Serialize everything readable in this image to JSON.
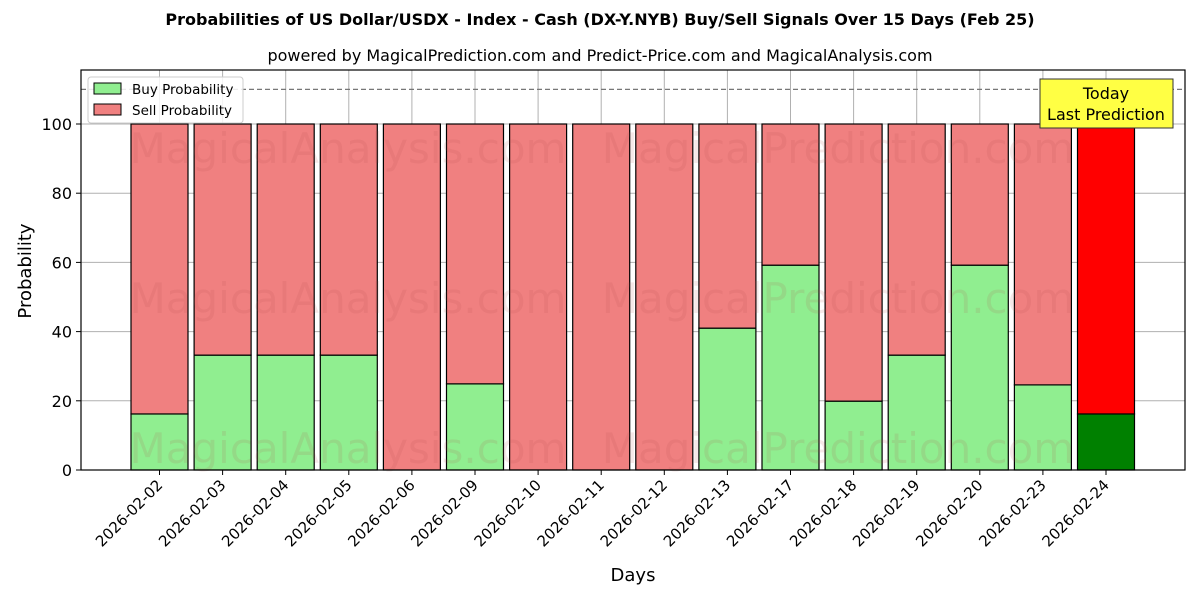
{
  "title": "Probabilities of US Dollar/USDX - Index - Cash (DX-Y.NYB) Buy/Sell Signals Over 15 Days (Feb 25)",
  "subtitle": "powered by MagicalPrediction.com and Predict-Price.com and MagicalAnalysis.com",
  "watermarks": [
    "MagicalAnalysis.com",
    "MagicalPrediction.com"
  ],
  "annotation": {
    "line1": "Today",
    "line2": "Last Prediction"
  },
  "colors": {
    "buy": "#90ee90",
    "sell": "#f08080",
    "buy_last": "#008000",
    "sell_last": "#ff0000",
    "annotation_bg": "#ffff44"
  },
  "chart_data": {
    "type": "bar",
    "stacked": true,
    "title": "Probabilities of US Dollar/USDX - Index - Cash (DX-Y.NYB) Buy/Sell Signals Over 15 Days (Feb 25)",
    "subtitle": "powered by MagicalPrediction.com and Predict-Price.com and MagicalAnalysis.com",
    "xlabel": "Days",
    "ylabel": "Probability",
    "ylim": [
      0,
      115
    ],
    "yticks": [
      0,
      20,
      40,
      60,
      80,
      100
    ],
    "grid": true,
    "legend_position": "upper left",
    "reference_line": 110,
    "categories": [
      "2026-02-02",
      "2026-02-03",
      "2026-02-04",
      "2026-02-05",
      "2026-02-06",
      "2026-02-09",
      "2026-02-10",
      "2026-02-11",
      "2026-02-12",
      "2026-02-13",
      "2026-02-17",
      "2026-02-18",
      "2026-02-19",
      "2026-02-20",
      "2026-02-23",
      "2026-02-24"
    ],
    "series": [
      {
        "name": "Buy Probability",
        "values": [
          16.2,
          33.2,
          33.2,
          33.2,
          0,
          24.9,
          0,
          0,
          0,
          41.0,
          59.2,
          19.9,
          33.2,
          59.2,
          24.6,
          16.2
        ]
      },
      {
        "name": "Sell Probability",
        "values": [
          83.8,
          66.8,
          66.8,
          66.8,
          100,
          75.1,
          100,
          100,
          100,
          59.0,
          40.8,
          80.1,
          66.8,
          40.8,
          75.4,
          83.8
        ]
      }
    ]
  }
}
